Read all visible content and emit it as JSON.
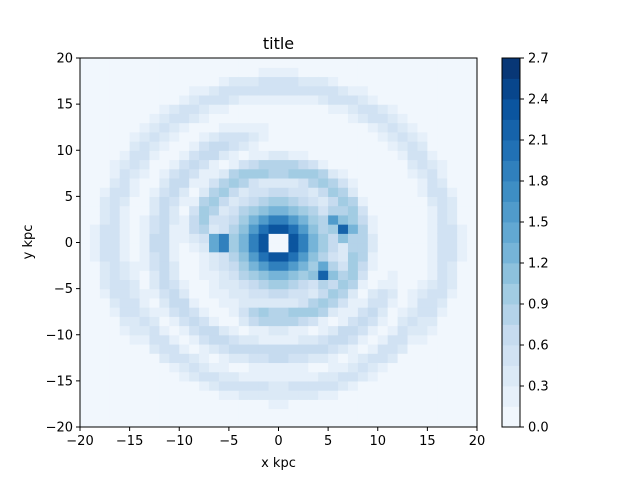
{
  "chart_data": {
    "type": "heatmap",
    "subtype": "filled-contour",
    "title": "title",
    "xlabel": "x kpc",
    "ylabel": "y kpc",
    "xlim": [
      -20,
      20
    ],
    "ylim": [
      -20,
      20
    ],
    "x_ticks": [
      -20,
      -15,
      -10,
      -5,
      0,
      5,
      10,
      15,
      20
    ],
    "y_ticks": [
      -20,
      -15,
      -10,
      -5,
      0,
      5,
      10,
      15,
      20
    ],
    "x_tick_labels": [
      "−20",
      "−15",
      "−10",
      "−5",
      "0",
      "5",
      "10",
      "15",
      "20"
    ],
    "y_tick_labels": [
      "−20",
      "−15",
      "−10",
      "−5",
      "0",
      "5",
      "10",
      "15",
      "20"
    ],
    "colormap": "Blues",
    "grid": false,
    "colorbar": {
      "range": [
        0.0,
        2.7
      ],
      "levels": [
        0.0,
        0.15,
        0.3,
        0.45,
        0.6,
        0.75,
        0.9,
        1.05,
        1.2,
        1.35,
        1.5,
        1.65,
        1.8,
        1.95,
        2.1,
        2.25,
        2.4,
        2.55,
        2.7
      ],
      "ticks": [
        0.0,
        0.3,
        0.6,
        0.9,
        1.2,
        1.5,
        1.8,
        2.1,
        2.4,
        2.7
      ],
      "tick_labels": [
        "0.0",
        "0.3",
        "0.6",
        "0.9",
        "1.2",
        "1.5",
        "1.8",
        "2.1",
        "2.4",
        "2.7"
      ]
    },
    "background_value": 0.05,
    "features": [
      {
        "kind": "central-peak",
        "center": [
          0,
          0
        ],
        "peak_value": 2.7,
        "hole_radius": 0.9
      },
      {
        "kind": "blob",
        "center": [
          -5.8,
          0
        ],
        "peak_value": 2.3
      },
      {
        "kind": "blob",
        "center": [
          6.6,
          1.5
        ],
        "peak_value": 2.2
      },
      {
        "kind": "blob",
        "center": [
          4.5,
          -3.3
        ],
        "peak_value": 2.2
      },
      {
        "kind": "blob",
        "center": [
          5.5,
          2.5
        ],
        "peak_value": 1.6
      },
      {
        "kind": "arc",
        "radius": 8,
        "value": 1.0,
        "from_deg": -100,
        "to_deg": 160
      },
      {
        "kind": "arc",
        "radius": 12,
        "value": 0.7,
        "from_deg": 120,
        "to_deg": 320
      },
      {
        "kind": "arc",
        "radius": 17,
        "value": 0.55,
        "from_deg": -20,
        "to_deg": 200
      },
      {
        "kind": "arc",
        "radius": 16,
        "value": 0.5,
        "from_deg": 200,
        "to_deg": 330
      }
    ]
  }
}
